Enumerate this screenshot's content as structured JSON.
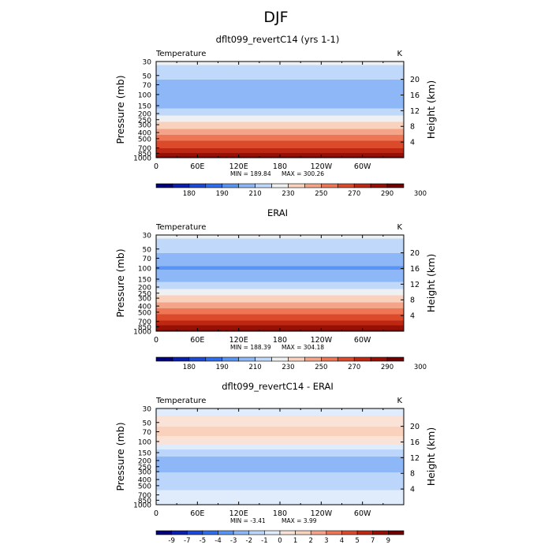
{
  "figure_title": "DJF",
  "chart_data": [
    {
      "type": "heatmap",
      "title": "dflt099_revertC14 (yrs 1-1)",
      "subtitle_left": "Temperature",
      "units_label": "K",
      "ylabel": "Pressure (mb)",
      "ylabel_right": "Height (km)",
      "x_ticks": [
        "0",
        "60E",
        "120E",
        "180",
        "120W",
        "60W"
      ],
      "x_tick_lon": [
        0,
        60,
        120,
        180,
        240,
        300
      ],
      "xlim": [
        0,
        360
      ],
      "y_ticks": [
        "30",
        "50",
        "70",
        "100",
        "150",
        "200",
        "250",
        "300",
        "400",
        "500",
        "700",
        "850",
        "1000"
      ],
      "y_tick_p": [
        30,
        50,
        70,
        100,
        150,
        200,
        250,
        300,
        400,
        500,
        700,
        850,
        1000
      ],
      "ylim": [
        1000,
        30
      ],
      "yscale": "log",
      "height_ticks": [
        "4",
        "8",
        "12",
        "16",
        "20"
      ],
      "height_tick_km": [
        4,
        8,
        12,
        16,
        20
      ],
      "min_label": "MIN = 189.84",
      "max_label": "MAX = 300.26",
      "levels": [
        180,
        190,
        210,
        230,
        250,
        270,
        290,
        300
      ],
      "colorbar_labels": [
        "180",
        "190",
        "210",
        "230",
        "250",
        "270",
        "290",
        "300"
      ],
      "profile_p": [
        30,
        50,
        70,
        100,
        150,
        200,
        250,
        300,
        400,
        500,
        700,
        850,
        1000
      ],
      "profile_values": [
        222,
        214,
        206,
        200,
        206,
        218,
        226,
        234,
        246,
        256,
        270,
        280,
        292
      ],
      "field_kind": "abs"
    },
    {
      "type": "heatmap",
      "title": "ERAI",
      "subtitle_left": "Temperature",
      "units_label": "K",
      "ylabel": "Pressure (mb)",
      "ylabel_right": "Height (km)",
      "x_ticks": [
        "0",
        "60E",
        "120E",
        "180",
        "120W",
        "60W"
      ],
      "x_tick_lon": [
        0,
        60,
        120,
        180,
        240,
        300
      ],
      "xlim": [
        0,
        360
      ],
      "y_ticks": [
        "30",
        "50",
        "70",
        "100",
        "150",
        "200",
        "250",
        "300",
        "400",
        "500",
        "700",
        "850",
        "1000"
      ],
      "y_tick_p": [
        30,
        50,
        70,
        100,
        150,
        200,
        250,
        300,
        400,
        500,
        700,
        850,
        1000
      ],
      "ylim": [
        1000,
        30
      ],
      "yscale": "log",
      "height_ticks": [
        "4",
        "8",
        "12",
        "16",
        "20"
      ],
      "height_tick_km": [
        4,
        8,
        12,
        16,
        20
      ],
      "min_label": "MIN = 188.39",
      "max_label": "MAX = 304.18",
      "levels": [
        180,
        190,
        210,
        230,
        250,
        270,
        290,
        300
      ],
      "colorbar_labels": [
        "180",
        "190",
        "210",
        "230",
        "250",
        "270",
        "290",
        "300"
      ],
      "profile_p": [
        30,
        50,
        70,
        100,
        150,
        200,
        250,
        300,
        400,
        500,
        700,
        850,
        1000
      ],
      "profile_values": [
        222,
        214,
        206,
        199,
        206,
        218,
        226,
        234,
        246,
        256,
        271,
        282,
        294
      ],
      "field_kind": "abs"
    },
    {
      "type": "heatmap",
      "title": "dflt099_revertC14 - ERAI",
      "subtitle_left": "Temperature",
      "units_label": "K",
      "ylabel": "Pressure (mb)",
      "ylabel_right": "Height (km)",
      "x_ticks": [
        "0",
        "60E",
        "120E",
        "180",
        "120W",
        "60W"
      ],
      "x_tick_lon": [
        0,
        60,
        120,
        180,
        240,
        300
      ],
      "xlim": [
        0,
        360
      ],
      "y_ticks": [
        "30",
        "50",
        "70",
        "100",
        "150",
        "200",
        "250",
        "300",
        "400",
        "500",
        "700",
        "850",
        "1000"
      ],
      "y_tick_p": [
        30,
        50,
        70,
        100,
        150,
        200,
        250,
        300,
        400,
        500,
        700,
        850,
        1000
      ],
      "ylim": [
        1000,
        30
      ],
      "yscale": "log",
      "height_ticks": [
        "4",
        "8",
        "12",
        "16",
        "20"
      ],
      "height_tick_km": [
        4,
        8,
        12,
        16,
        20
      ],
      "min_label": "MIN = -3.41",
      "max_label": "MAX = 3.99",
      "levels": [
        -9,
        -7,
        -5,
        -4,
        -3,
        -2,
        -1,
        0,
        1,
        2,
        3,
        4,
        5,
        7,
        9
      ],
      "colorbar_labels": [
        "-9",
        "-7",
        "-5",
        "-4",
        "-3",
        "-2",
        "-1",
        "0",
        "1",
        "2",
        "3",
        "4",
        "5",
        "7",
        "9"
      ],
      "profile_p": [
        30,
        50,
        70,
        100,
        150,
        200,
        250,
        300,
        400,
        500,
        700,
        850,
        1000
      ],
      "profile_values": [
        -0.5,
        0.5,
        1.5,
        0.5,
        -1.5,
        -2.5,
        -2.5,
        -2,
        -1.5,
        -1.5,
        -0.5,
        -0.5,
        -0.5
      ],
      "field_kind": "diff"
    }
  ],
  "colors": {
    "abs": [
      "#00007a",
      "#0a1fb0",
      "#1d49d6",
      "#2f6eeb",
      "#5a94f2",
      "#8db7f7",
      "#c0d8fa",
      "#eef0f2",
      "#fad1bd",
      "#f4a488",
      "#ec7655",
      "#db4a2a",
      "#be2812",
      "#961005",
      "#700000"
    ],
    "diff": [
      "#00007a",
      "#0a1fb0",
      "#1d49d6",
      "#2f6eeb",
      "#5a94f2",
      "#8db7f7",
      "#bcd5fa",
      "#e0ebfb",
      "#fbe2d6",
      "#fad1bd",
      "#f4a488",
      "#ec7655",
      "#db4a2a",
      "#be2812",
      "#961005",
      "#700000"
    ],
    "abs_cut": [
      172,
      176,
      180,
      185,
      190,
      200,
      210,
      220,
      230,
      240,
      250,
      260,
      270,
      280,
      290,
      300,
      310
    ],
    "diff_cut": [
      -11,
      -9,
      -7,
      -5,
      -4,
      -3,
      -2,
      -1,
      0,
      1,
      2,
      3,
      4,
      5,
      7,
      9,
      11
    ]
  }
}
